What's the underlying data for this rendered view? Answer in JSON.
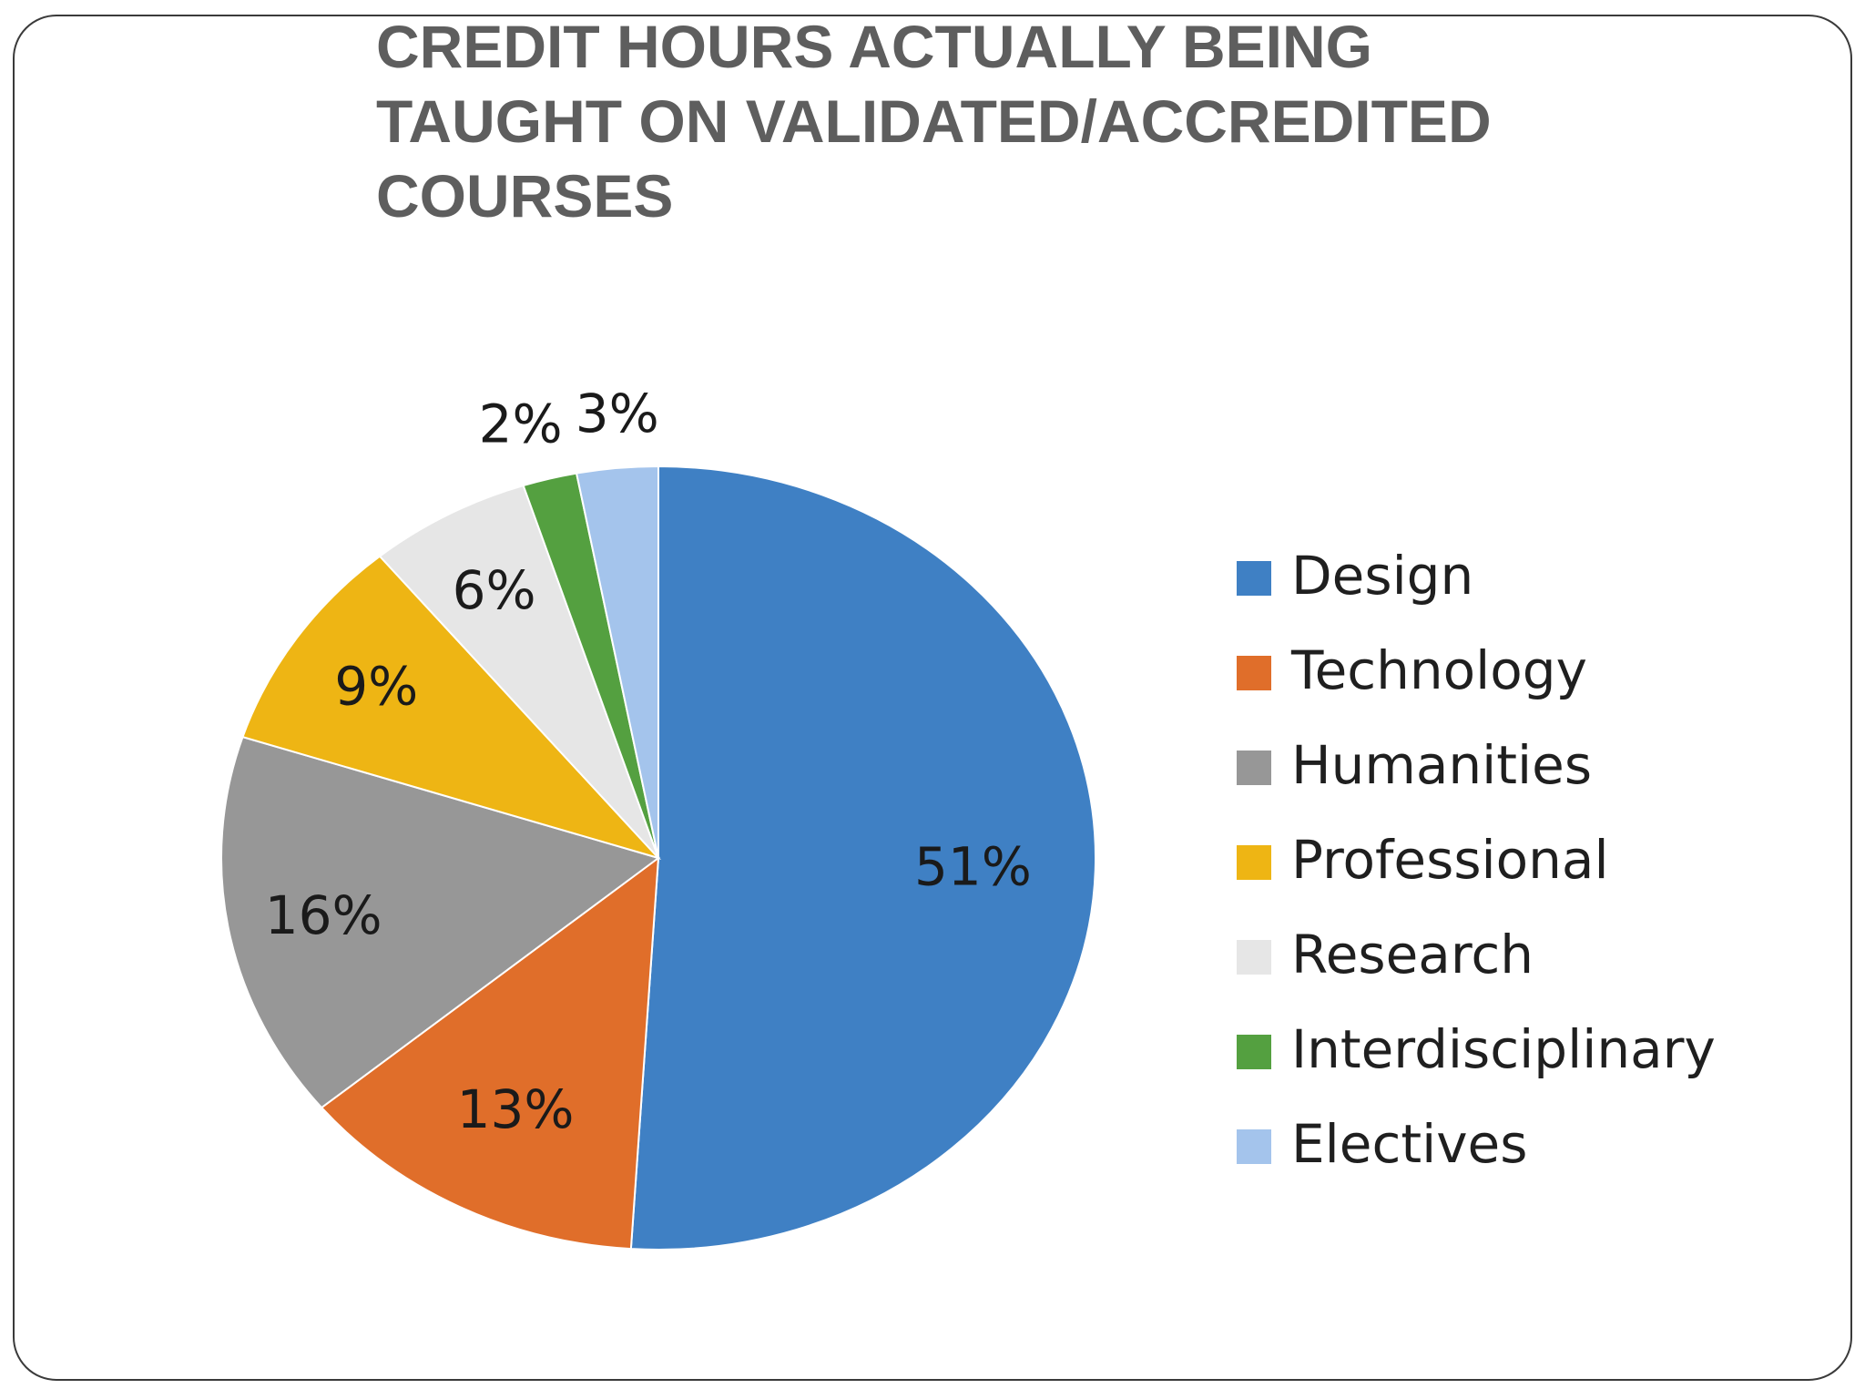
{
  "chart_data": {
    "type": "pie",
    "title_lines": [
      "CREDIT HOURS ACTUALLY BEING",
      "TAUGHT ON VALIDATED/ACCREDITED",
      "COURSES"
    ],
    "categories": [
      "Design",
      "Technology",
      "Humanities",
      "Professional",
      "Research",
      "Interdisciplinary",
      "Electives"
    ],
    "values": [
      51,
      13,
      16,
      9,
      6,
      2,
      3
    ],
    "data_labels": [
      "51%",
      "13%",
      "16%",
      "9%",
      "6%",
      "2%",
      "3%"
    ],
    "colors": [
      "#3f80c4",
      "#e06e2a",
      "#979797",
      "#eeb514",
      "#e6e6e6",
      "#54a040",
      "#a4c4ec"
    ],
    "start_angle_deg": 0,
    "direction": "clockwise",
    "legend_position": "right"
  }
}
